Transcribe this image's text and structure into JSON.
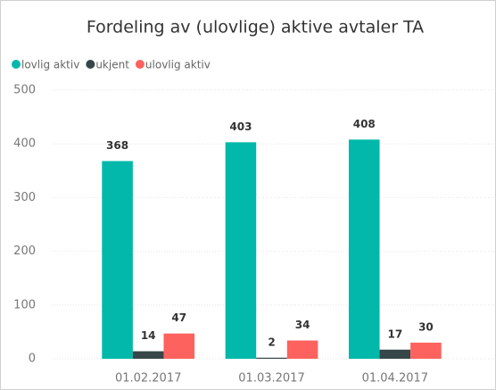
{
  "chart_data": {
    "type": "bar",
    "title": "Fordeling av (ulovlige) aktive avtaler TA",
    "categories": [
      "01.02.2017",
      "01.03.2017",
      "01.04.2017"
    ],
    "series": [
      {
        "name": "lovlig aktiv",
        "color": "#01B8AA",
        "values": [
          368,
          403,
          408
        ]
      },
      {
        "name": "ukjent",
        "color": "#374649",
        "values": [
          14,
          2,
          17
        ]
      },
      {
        "name": "ulovlig aktiv",
        "color": "#FD625E",
        "values": [
          47,
          34,
          30
        ]
      }
    ],
    "ylim": [
      0,
      500
    ],
    "yticks": [
      0,
      100,
      200,
      300,
      400,
      500
    ],
    "grid": true,
    "legend": "top-left"
  }
}
